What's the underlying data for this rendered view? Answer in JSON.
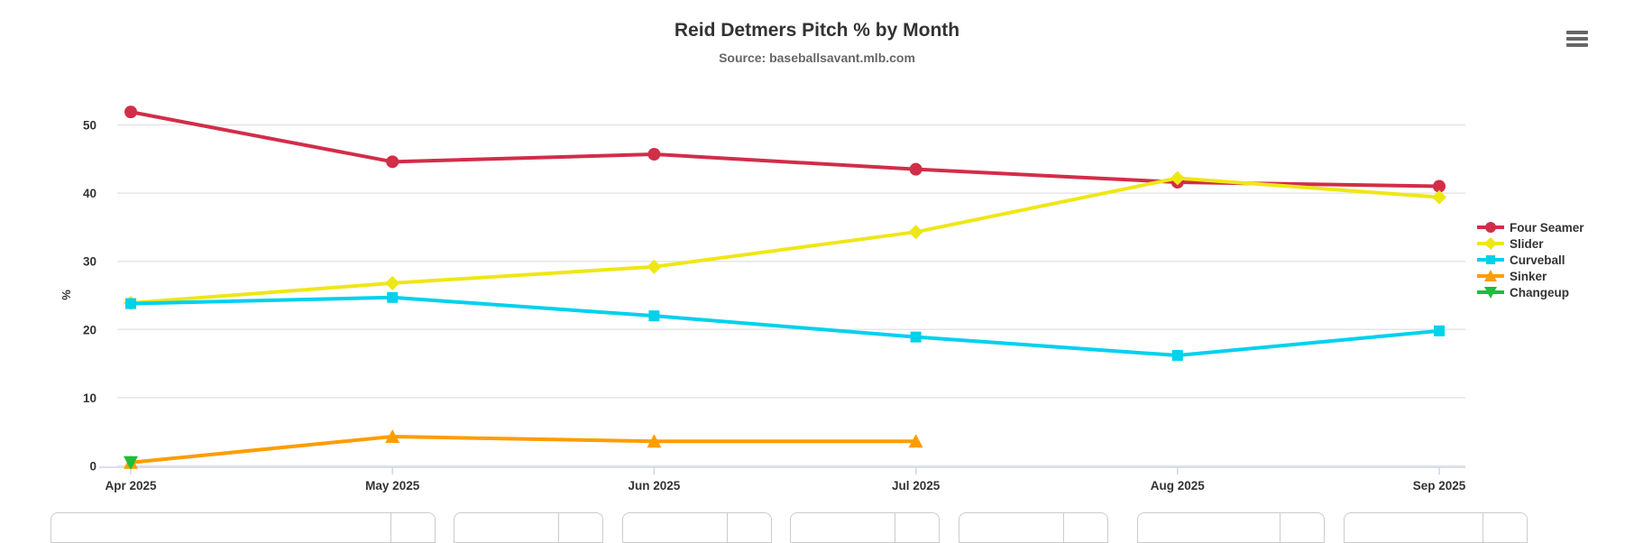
{
  "chart_data": {
    "type": "line",
    "title": "Reid Detmers Pitch % by Month",
    "subtitle": "Source: baseballsavant.mlb.com",
    "categories": [
      "Apr 2025",
      "May 2025",
      "Jun 2025",
      "Jul 2025",
      "Aug 2025",
      "Sep 2025"
    ],
    "xlabel": "",
    "ylabel": "%",
    "ylim": [
      0,
      55
    ],
    "yticks": [
      0,
      10,
      20,
      30,
      40,
      50
    ],
    "grid": true,
    "legend_position": "right",
    "series": [
      {
        "name": "Four Seamer",
        "color": "#D22D49",
        "marker": "circle",
        "values": [
          51.9,
          44.6,
          45.7,
          43.5,
          41.6,
          41.0
        ]
      },
      {
        "name": "Slider",
        "color": "#EEE716",
        "marker": "diamond",
        "values": [
          23.9,
          26.8,
          29.2,
          34.3,
          42.2,
          39.4
        ]
      },
      {
        "name": "Curveball",
        "color": "#00D1ED",
        "marker": "square",
        "values": [
          23.8,
          24.7,
          22.0,
          18.9,
          16.2,
          19.8
        ]
      },
      {
        "name": "Sinker",
        "color": "#FE9D00",
        "marker": "triangle-up",
        "values": [
          0.5,
          4.3,
          3.6,
          3.6,
          null,
          null
        ]
      },
      {
        "name": "Changeup",
        "color": "#1DBE3A",
        "marker": "triangle-down",
        "values": [
          0.5,
          null,
          null,
          null,
          null,
          null
        ]
      }
    ]
  },
  "colors": {
    "title": "#333333",
    "subtitle": "#666666",
    "axis_label": "#333333",
    "gridline": "#e6e6e6",
    "axis_line": "#ccd6eb",
    "menu_icon": "#666666"
  },
  "toolbar": {
    "context_menu_icon": "hamburger-menu-icon"
  }
}
